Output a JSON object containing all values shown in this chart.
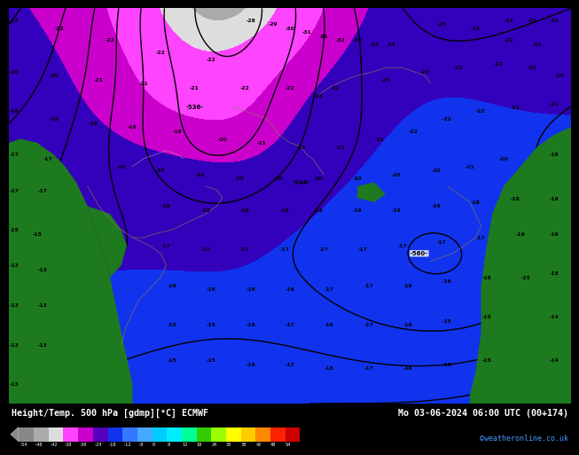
{
  "title_left": "Height/Temp. 500 hPa [gdmp][°C] ECMWF",
  "title_right": "Mo 03-06-2024 06:00 UTC (00+174)",
  "credit": "©weatheronline.co.uk",
  "fig_width": 6.34,
  "fig_height": 4.9,
  "bg_color": "#000000",
  "colorbar_colors": [
    "#888888",
    "#aaaaaa",
    "#cccccc",
    "#ff00ff",
    "#cc00cc",
    "#6600bb",
    "#0000dd",
    "#2255ff",
    "#55aaff",
    "#00ddff",
    "#00ffee",
    "#00ff88",
    "#44cc00",
    "#88ff00",
    "#ffff00",
    "#ffcc00",
    "#ff8800",
    "#ff2200",
    "#cc0000"
  ],
  "colorbar_labels": [
    "-54",
    "-48",
    "-42",
    "-38",
    "-30",
    "-24",
    "-18",
    "-12",
    "-8",
    "0",
    "8",
    "12",
    "18",
    "24",
    "30",
    "38",
    "42",
    "48",
    "54"
  ],
  "temp_colors": {
    "below_neg30": "#cc00cc",
    "neg30_neg24": "#0000cc",
    "neg24_neg18": "#2255ff",
    "neg18_neg12": "#55aaff",
    "neg12_neg8": "#00ccff",
    "neg8_0": "#00eeff",
    "main_cyan": "#00ddff"
  }
}
